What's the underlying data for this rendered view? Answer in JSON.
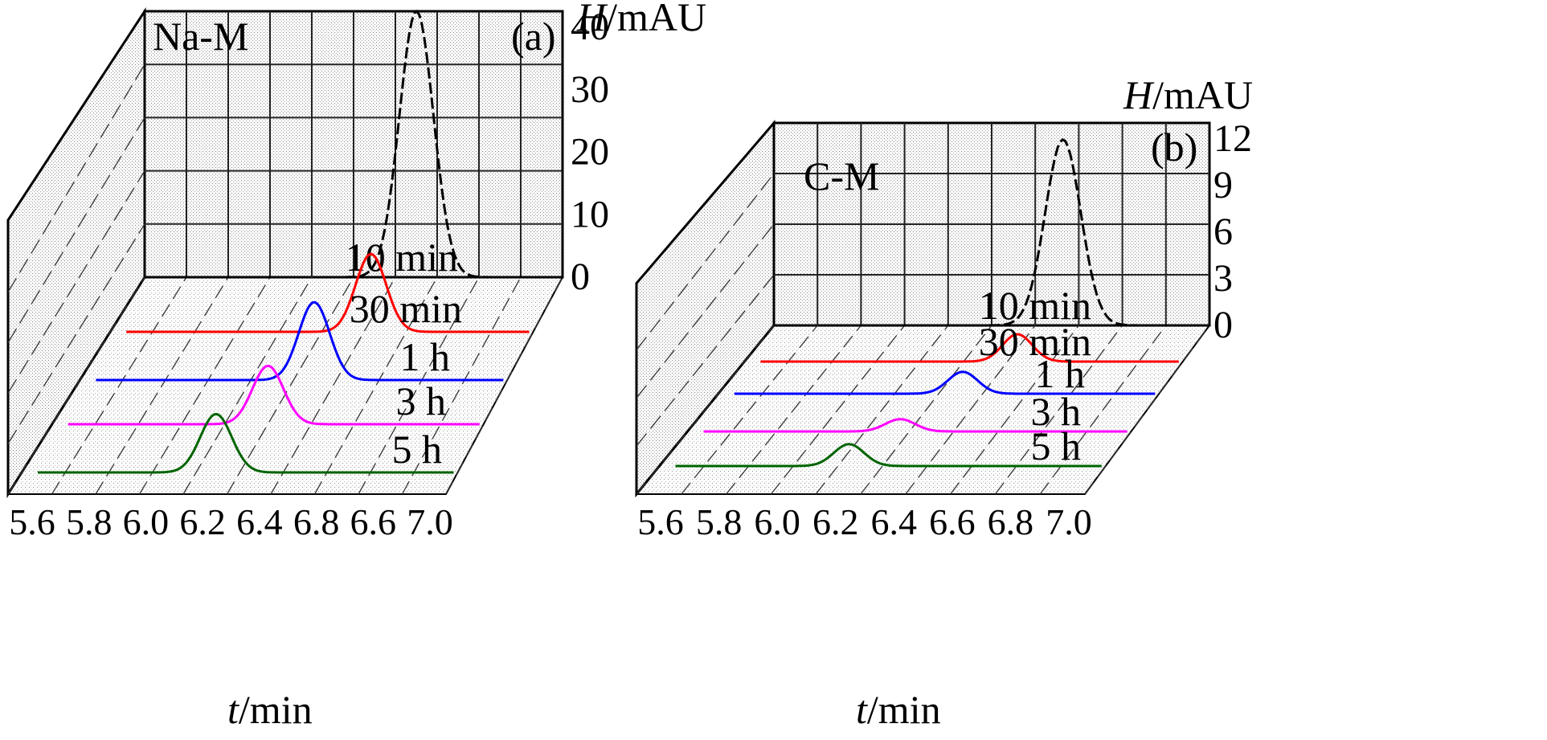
{
  "chart_data": [
    {
      "type": "line",
      "panel_label": "(a)",
      "sample_label": "Na-M",
      "xlabel_italic": "t",
      "xlabel_unit": "/min",
      "ylabel_italic": "H",
      "ylabel_unit": "/mAU",
      "x_ticks": [
        "5.6",
        "5.8",
        "6.0",
        "6.2",
        "6.4",
        "6.8",
        "6.6",
        "7.0"
      ],
      "y_ticks": [
        "0",
        "10",
        "20",
        "30",
        "40"
      ],
      "ylim": [
        0,
        40
      ],
      "xlim": [
        5.6,
        7.0
      ],
      "series": [
        {
          "name": "10 min",
          "color": "#000000",
          "peak_x": 6.5,
          "peak_height": 44,
          "width": 0.085
        },
        {
          "name": "30 min",
          "color": "#ff0000",
          "peak_x": 6.45,
          "peak_height": 14,
          "width": 0.075
        },
        {
          "name": "1 h",
          "color": "#0000ff",
          "peak_x": 6.35,
          "peak_height": 14,
          "width": 0.075
        },
        {
          "name": "3 h",
          "color": "#ff00ff",
          "peak_x": 6.28,
          "peak_height": 10.5,
          "width": 0.075
        },
        {
          "name": "5 h",
          "color": "#006400",
          "peak_x": 6.2,
          "peak_height": 10.5,
          "width": 0.075
        }
      ]
    },
    {
      "type": "line",
      "panel_label": "(b)",
      "sample_label": "C-M",
      "xlabel_italic": "t",
      "xlabel_unit": "/min",
      "ylabel_italic": "H",
      "ylabel_unit": "/mAU",
      "x_ticks": [
        "5.6",
        "5.8",
        "6.0",
        "6.2",
        "6.4",
        "6.6",
        "6.8",
        "7.0"
      ],
      "y_ticks": [
        "0",
        "3",
        "6",
        "9",
        "12"
      ],
      "ylim": [
        0,
        12
      ],
      "xlim": [
        5.6,
        7.0
      ],
      "series": [
        {
          "name": "10 min",
          "color": "#000000",
          "peak_x": 6.52,
          "peak_height": 12.5,
          "width": 0.085
        },
        {
          "name": "30 min",
          "color": "#ff0000",
          "peak_x": 6.46,
          "peak_height": 2.0,
          "width": 0.07
        },
        {
          "name": "1 h",
          "color": "#0000ff",
          "peak_x": 6.36,
          "peak_height": 1.6,
          "width": 0.07
        },
        {
          "name": "3 h",
          "color": "#ff00ff",
          "peak_x": 6.25,
          "peak_height": 0.9,
          "width": 0.07
        },
        {
          "name": "5 h",
          "color": "#006400",
          "peak_x": 6.17,
          "peak_height": 1.6,
          "width": 0.07
        }
      ]
    }
  ]
}
